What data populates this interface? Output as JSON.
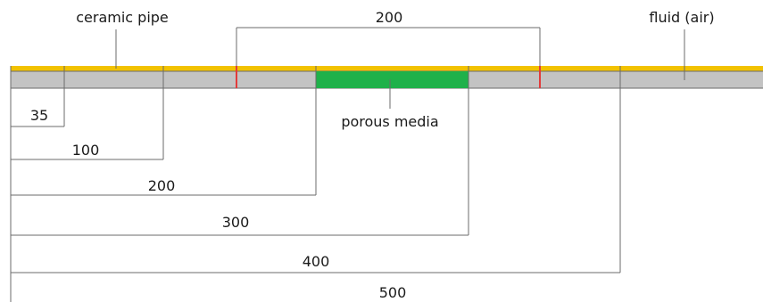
{
  "labels": {
    "ceramic_pipe": "ceramic pipe",
    "fluid": "fluid (air)",
    "porous_media": "porous media"
  },
  "top_dimension": {
    "value": "200"
  },
  "dimensions": [
    {
      "value": "35"
    },
    {
      "value": "100"
    },
    {
      "value": "200"
    },
    {
      "value": "300"
    },
    {
      "value": "400"
    },
    {
      "value": "500"
    }
  ],
  "colors": {
    "pipe_wall": "#f2c200",
    "fluid": "#c3c3c3",
    "porous_media": "#1fb14a",
    "marker": "#e23b3b",
    "line": "#6b6b6b"
  }
}
